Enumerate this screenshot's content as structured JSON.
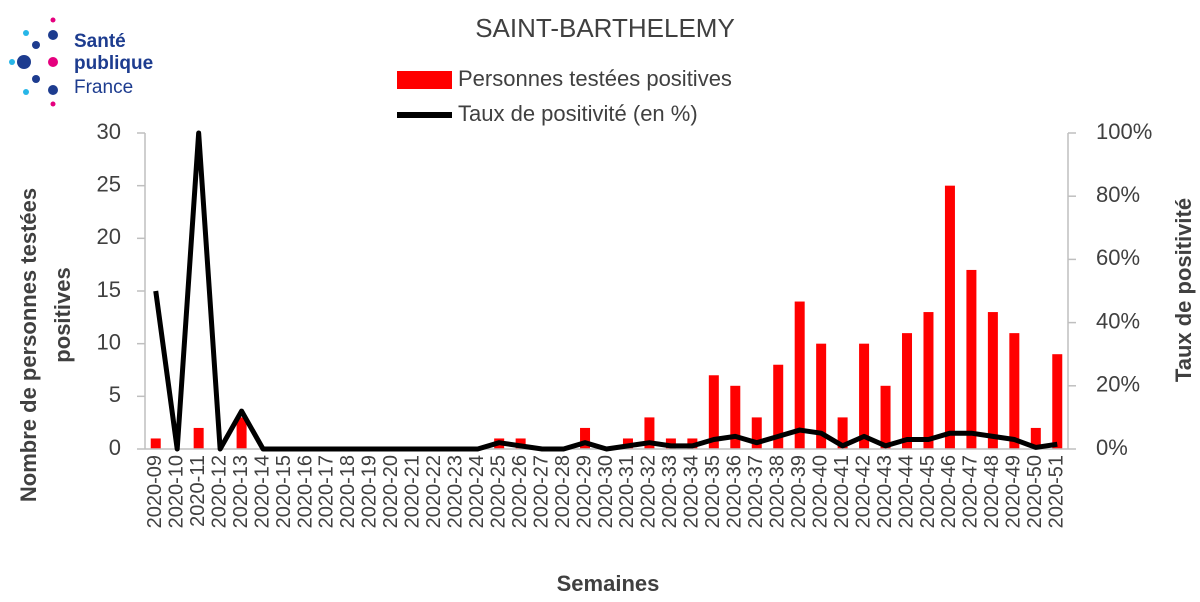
{
  "logo": [
    "Santé",
    "publique",
    "France"
  ],
  "chart_data": {
    "type": "bar-line",
    "title": "SAINT-BARTHELEMY",
    "xlabel": "Semaines",
    "ylabel": [
      "Nombre de personnes testées",
      "positives"
    ],
    "y2label": "Taux de positivité",
    "categories": [
      "2020-09",
      "2020-10",
      "2020-11",
      "2020-12",
      "2020-13",
      "2020-14",
      "2020-15",
      "2020-16",
      "2020-17",
      "2020-18",
      "2020-19",
      "2020-20",
      "2020-21",
      "2020-22",
      "2020-23",
      "2020-24",
      "2020-25",
      "2020-26",
      "2020-27",
      "2020-28",
      "2020-29",
      "2020-30",
      "2020-31",
      "2020-32",
      "2020-33",
      "2020-34",
      "2020-35",
      "2020-36",
      "2020-37",
      "2020-38",
      "2020-39",
      "2020-40",
      "2020-41",
      "2020-42",
      "2020-43",
      "2020-44",
      "2020-45",
      "2020-46",
      "2020-47",
      "2020-48",
      "2020-49",
      "2020-50",
      "2020-51"
    ],
    "series": [
      {
        "name": "Personnes testées positives",
        "type": "bar",
        "color": "#ff0000",
        "values": [
          1,
          0,
          2,
          0,
          3,
          0,
          0,
          0,
          0,
          0,
          0,
          0,
          0,
          0,
          0,
          0,
          1,
          1,
          0,
          0,
          2,
          0,
          1,
          3,
          1,
          1,
          7,
          6,
          3,
          8,
          14,
          10,
          3,
          10,
          6,
          11,
          13,
          25,
          17,
          13,
          11,
          2,
          9
        ]
      },
      {
        "name": "Taux de positivité (en %)",
        "type": "line",
        "axis": "y2",
        "color": "#000000",
        "values": [
          50,
          0,
          100,
          0,
          12,
          0,
          0,
          0,
          0,
          0,
          0,
          0,
          0,
          0,
          0,
          0,
          2,
          1,
          0,
          0,
          2,
          0,
          1,
          2,
          1,
          1,
          3,
          4,
          2,
          4,
          6,
          5,
          1,
          4,
          1,
          3,
          3,
          5,
          5,
          4,
          3,
          0.5,
          1.5
        ]
      }
    ],
    "ylim": [
      0,
      30
    ],
    "yticks": [
      0,
      5,
      10,
      15,
      20,
      25,
      30
    ],
    "y2lim": [
      0,
      100
    ],
    "y2ticks": [
      {
        "value": 0,
        "label": "0%"
      },
      {
        "value": 20,
        "label": "20%"
      },
      {
        "value": 40,
        "label": "40%"
      },
      {
        "value": 60,
        "label": "60%"
      },
      {
        "value": 80,
        "label": "80%"
      },
      {
        "value": 100,
        "label": "100%"
      }
    ]
  }
}
